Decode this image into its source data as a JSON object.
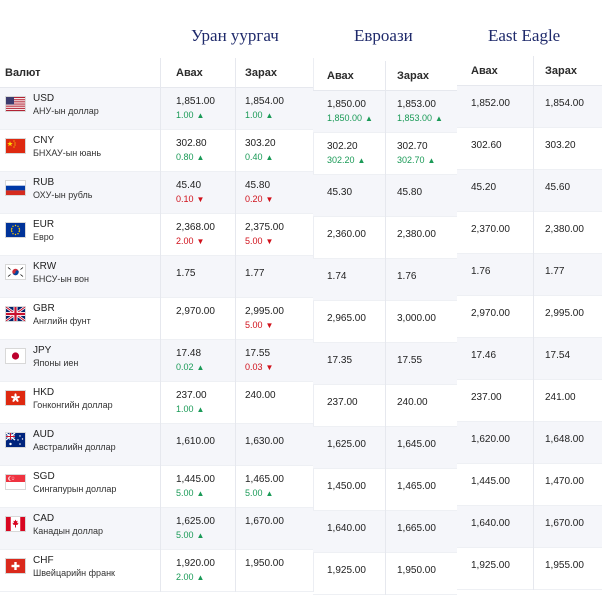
{
  "titles": [
    "Уран уургач",
    "Евроази",
    "East Eagle"
  ],
  "headers": {
    "currency": "Валют",
    "buy": "Авах",
    "sell": "Зарах"
  },
  "uran": [
    {
      "code": "USD",
      "name": "АНУ-ын доллар",
      "flag": "us-flag-icon",
      "buy": "1,851.00",
      "buy_change": "1.00",
      "buy_dir": "up",
      "sell": "1,854.00",
      "sell_change": "1.00",
      "sell_dir": "up"
    },
    {
      "code": "CNY",
      "name": "БНХАУ-ын юань",
      "flag": "cn-flag-icon",
      "buy": "302.80",
      "buy_change": "0.80",
      "buy_dir": "up",
      "sell": "303.20",
      "sell_change": "0.40",
      "sell_dir": "up"
    },
    {
      "code": "RUB",
      "name": "ОХУ-ын рубль",
      "flag": "ru-flag-icon",
      "buy": "45.40",
      "buy_change": "0.10",
      "buy_dir": "down",
      "sell": "45.80",
      "sell_change": "0.20",
      "sell_dir": "down"
    },
    {
      "code": "EUR",
      "name": "Евро",
      "flag": "eu-flag-icon",
      "buy": "2,368.00",
      "buy_change": "2.00",
      "buy_dir": "down",
      "sell": "2,375.00",
      "sell_change": "5.00",
      "sell_dir": "down"
    },
    {
      "code": "KRW",
      "name": "БНСУ-ын вон",
      "flag": "kr-flag-icon",
      "buy": "1.75",
      "buy_change": "",
      "buy_dir": "",
      "sell": "1.77",
      "sell_change": "",
      "sell_dir": ""
    },
    {
      "code": "GBR",
      "name": "Английн фунт",
      "flag": "gb-flag-icon",
      "buy": "2,970.00",
      "buy_change": "",
      "buy_dir": "",
      "sell": "2,995.00",
      "sell_change": "5.00",
      "sell_dir": "down"
    },
    {
      "code": "JPY",
      "name": "Японы иен",
      "flag": "jp-flag-icon",
      "buy": "17.48",
      "buy_change": "0.02",
      "buy_dir": "up",
      "sell": "17.55",
      "sell_change": "0.03",
      "sell_dir": "down"
    },
    {
      "code": "HKD",
      "name": "Гонконгийн доллар",
      "flag": "hk-flag-icon",
      "buy": "237.00",
      "buy_change": "1.00",
      "buy_dir": "up",
      "sell": "240.00",
      "sell_change": "",
      "sell_dir": ""
    },
    {
      "code": "AUD",
      "name": "Австралийн доллар",
      "flag": "au-flag-icon",
      "buy": "1,610.00",
      "buy_change": "",
      "buy_dir": "",
      "sell": "1,630.00",
      "sell_change": "",
      "sell_dir": ""
    },
    {
      "code": "SGD",
      "name": "Сингапурын доллар",
      "flag": "sg-flag-icon",
      "buy": "1,445.00",
      "buy_change": "5.00",
      "buy_dir": "up",
      "sell": "1,465.00",
      "sell_change": "5.00",
      "sell_dir": "up"
    },
    {
      "code": "CAD",
      "name": "Канадын доллар",
      "flag": "ca-flag-icon",
      "buy": "1,625.00",
      "buy_change": "5.00",
      "buy_dir": "up",
      "sell": "1,670.00",
      "sell_change": "",
      "sell_dir": ""
    },
    {
      "code": "CHF",
      "name": "Швейцарийн франк",
      "flag": "ch-flag-icon",
      "buy": "1,920.00",
      "buy_change": "2.00",
      "buy_dir": "up",
      "sell": "1,950.00",
      "sell_change": "",
      "sell_dir": ""
    }
  ],
  "euroasia": [
    {
      "buy": "1,850.00",
      "buy_change": "1,850.00",
      "buy_dir": "up",
      "sell": "1,853.00",
      "sell_change": "1,853.00",
      "sell_dir": "up"
    },
    {
      "buy": "302.20",
      "buy_change": "302.20",
      "buy_dir": "up",
      "sell": "302.70",
      "sell_change": "302.70",
      "sell_dir": "up"
    },
    {
      "buy": "45.30",
      "sell": "45.80"
    },
    {
      "buy": "2,360.00",
      "sell": "2,380.00"
    },
    {
      "buy": "1.74",
      "sell": "1.76"
    },
    {
      "buy": "2,965.00",
      "sell": "3,000.00"
    },
    {
      "buy": "17.35",
      "sell": "17.55"
    },
    {
      "buy": "237.00",
      "sell": "240.00"
    },
    {
      "buy": "1,625.00",
      "sell": "1,645.00"
    },
    {
      "buy": "1,450.00",
      "sell": "1,465.00"
    },
    {
      "buy": "1,640.00",
      "sell": "1,665.00"
    },
    {
      "buy": "1,925.00",
      "sell": "1,950.00"
    }
  ],
  "eagle": [
    {
      "buy": "1,852.00",
      "sell": "1,854.00"
    },
    {
      "buy": "302.60",
      "sell": "303.20"
    },
    {
      "buy": "45.20",
      "sell": "45.60"
    },
    {
      "buy": "2,370.00",
      "sell": "2,380.00"
    },
    {
      "buy": "1.76",
      "sell": "1.77"
    },
    {
      "buy": "2,970.00",
      "sell": "2,995.00"
    },
    {
      "buy": "17.46",
      "sell": "17.54"
    },
    {
      "buy": "237.00",
      "sell": "241.00"
    },
    {
      "buy": "1,620.00",
      "sell": "1,648.00"
    },
    {
      "buy": "1,445.00",
      "sell": "1,470.00"
    },
    {
      "buy": "1,640.00",
      "sell": "1,670.00"
    },
    {
      "buy": "1,925.00",
      "sell": "1,955.00"
    }
  ],
  "colors": {
    "up": "#1a9a57",
    "down": "#d0101a",
    "title": "#1f2a6b",
    "stripe": "#f5f6fa"
  }
}
